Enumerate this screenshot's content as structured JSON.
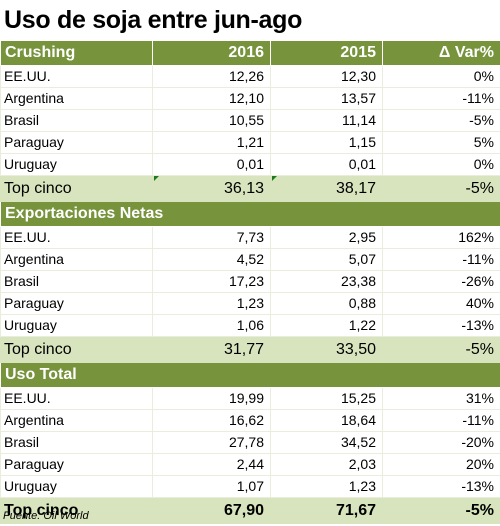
{
  "title": "Uso de soja entre jun-ago",
  "sections": [
    {
      "header": [
        "Crushing",
        "2016",
        "2015",
        "Δ Var%"
      ],
      "rows": [
        [
          "EE.UU.",
          "12,26",
          "12,30",
          "0%"
        ],
        [
          "Argentina",
          "12,10",
          "13,57",
          "-11%"
        ],
        [
          "Brasil",
          "10,55",
          "11,14",
          "-5%"
        ],
        [
          "Paraguay",
          "1,21",
          "1,15",
          "5%"
        ],
        [
          "Uruguay",
          "0,01",
          "0,01",
          "0%"
        ]
      ],
      "total": [
        "Top cinco",
        "36,13",
        "38,17",
        "-5%"
      ]
    },
    {
      "header": [
        "Exportaciones Netas",
        "",
        "",
        ""
      ],
      "rows": [
        [
          "EE.UU.",
          "7,73",
          "2,95",
          "162%"
        ],
        [
          "Argentina",
          "4,52",
          "5,07",
          "-11%"
        ],
        [
          "Brasil",
          "17,23",
          "23,38",
          "-26%"
        ],
        [
          "Paraguay",
          "1,23",
          "0,88",
          "40%"
        ],
        [
          "Uruguay",
          "1,06",
          "1,22",
          "-13%"
        ]
      ],
      "total": [
        "Top cinco",
        "31,77",
        "33,50",
        "-5%"
      ]
    },
    {
      "header": [
        "Uso Total",
        "",
        "",
        ""
      ],
      "rows": [
        [
          "EE.UU.",
          "19,99",
          "15,25",
          "31%"
        ],
        [
          "Argentina",
          "16,62",
          "18,64",
          "-11%"
        ],
        [
          "Brasil",
          "27,78",
          "34,52",
          "-20%"
        ],
        [
          "Paraguay",
          "2,44",
          "2,03",
          "20%"
        ],
        [
          "Uruguay",
          "1,07",
          "1,23",
          "-13%"
        ]
      ],
      "total": [
        "Top cinco",
        "67,90",
        "71,67",
        "-5%"
      ]
    }
  ],
  "source": "Fuente: Oil World",
  "colors": {
    "header": "#77933c",
    "total": "#d7e4bd",
    "marker": "#1e7a1e"
  }
}
